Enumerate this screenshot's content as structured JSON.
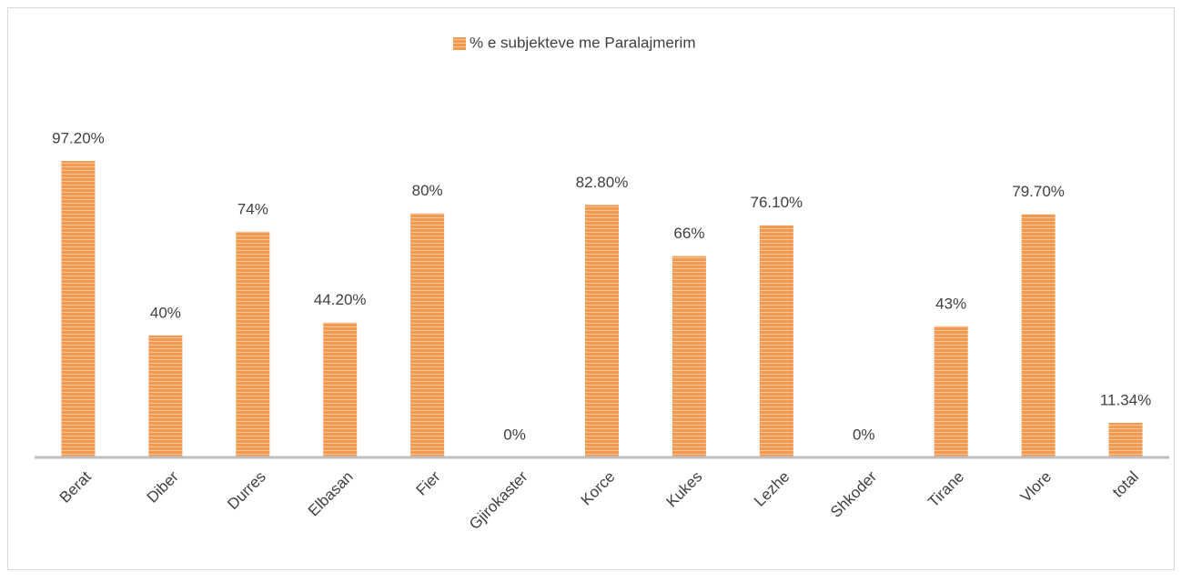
{
  "chart_data": {
    "type": "bar",
    "categories": [
      "Berat",
      "Diber",
      "Durres",
      "Elbasan",
      "Fier",
      "Gjirokaster",
      "Korce",
      "Kukes",
      "Lezhe",
      "Shkoder",
      "Tirane",
      "Vlore",
      "total"
    ],
    "series": [
      {
        "name": "% e subjekteve me Paralajmerim",
        "color": "#f39a52",
        "values": [
          97.2,
          40,
          74,
          44.2,
          80,
          0,
          82.8,
          66,
          76.1,
          0,
          43,
          79.7,
          11.34
        ],
        "value_labels": [
          "97.20%",
          "40%",
          "74%",
          "44.20%",
          "80%",
          "0%",
          "82.80%",
          "66%",
          "76.10%",
          "0%",
          "43%",
          "79.70%",
          "11.34%"
        ]
      }
    ]
  }
}
